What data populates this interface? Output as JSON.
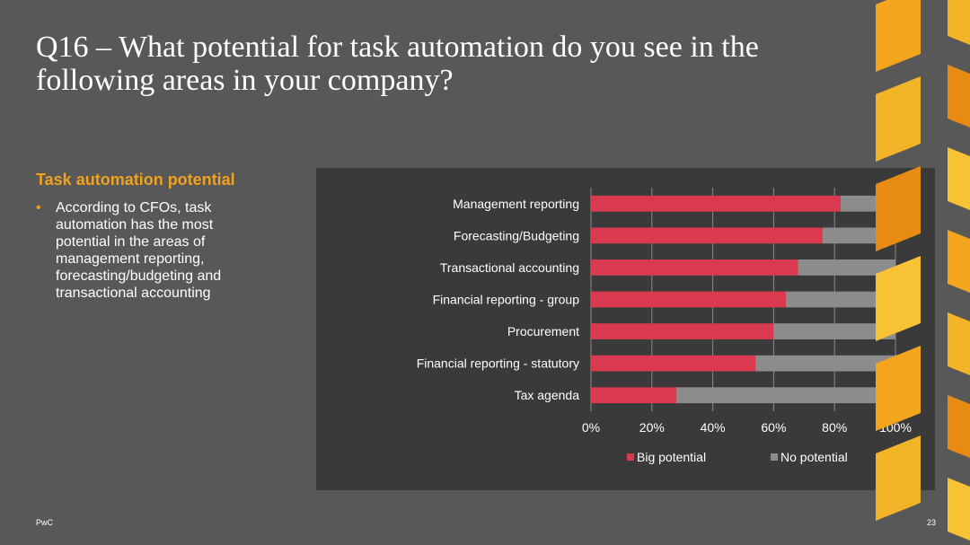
{
  "slide": {
    "title": "Q16 – What potential for task automation do you see in the following areas in your company?",
    "section_heading": "Task automation potential",
    "bullets": [
      "According to CFOs, task automation has the most potential in the areas of management reporting, forecasting/budgeting and transactional accounting"
    ],
    "footer_left": "PwC",
    "page_number": "23"
  },
  "colors": {
    "background": "#585858",
    "chart_background": "#3a3a3a",
    "accent_orange": "#f0a21c",
    "big_potential": "#d93a50",
    "no_potential": "#8c8c8c"
  },
  "chart_data": {
    "type": "bar",
    "orientation": "horizontal",
    "stacked": true,
    "categories": [
      "Management reporting",
      "Forecasting/Budgeting",
      "Transactional accounting",
      "Financial reporting - group",
      "Procurement",
      "Financial reporting - statutory",
      "Tax agenda"
    ],
    "series": [
      {
        "name": "Big potential",
        "color": "#d93a50",
        "values": [
          82,
          76,
          68,
          64,
          60,
          54,
          28
        ]
      },
      {
        "name": "No potential",
        "color": "#8c8c8c",
        "values": [
          18,
          24,
          32,
          36,
          40,
          46,
          72
        ]
      }
    ],
    "xlim": [
      0,
      100
    ],
    "x_ticks": [
      "0%",
      "20%",
      "40%",
      "60%",
      "80%",
      "100%"
    ],
    "grid": "vertical",
    "legend_position": "bottom",
    "title": "",
    "xlabel": "",
    "ylabel": ""
  }
}
